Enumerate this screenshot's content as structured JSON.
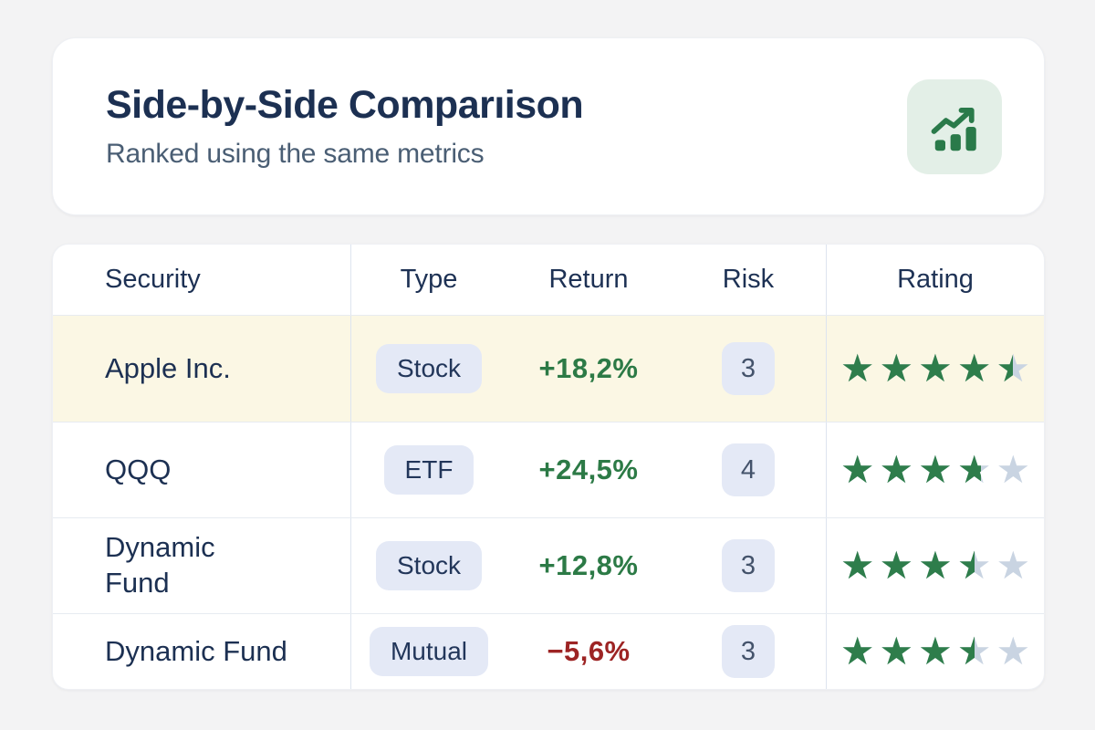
{
  "header": {
    "title": "Side-by-Side Comparıison",
    "subtitle": "Ranked using the same metrics",
    "icon": {
      "name": "bar-chart-trending-up-icon",
      "background": "#e3efe7",
      "color": "#2a7a4a"
    }
  },
  "table": {
    "columns": [
      "Security",
      "Type",
      "Return",
      "Risk",
      "Rating"
    ],
    "rows": [
      {
        "security": "Apple Inc.",
        "type": "Stock",
        "return": "+18,2%",
        "direction": "positive",
        "risk": "3",
        "rating": 4.5,
        "highlighted": true
      },
      {
        "security": "QQQ",
        "type": "ETF",
        "return": "+24,5%",
        "direction": "positive",
        "risk": "4",
        "rating": 3.7,
        "highlighted": false
      },
      {
        "security": "Dynamic\nFund",
        "type": "Stock",
        "return": "+12,8%",
        "direction": "positive",
        "risk": "3",
        "rating": 3.5,
        "highlighted": false
      },
      {
        "security": "Dynamic Fund",
        "type": "Mutual",
        "return": "−5,6%",
        "direction": "negative",
        "risk": "3",
        "rating": 3.5,
        "highlighted": false
      }
    ],
    "colors": {
      "positive": "#2c7a46",
      "negative": "#9d2424",
      "star_full": "#2e7d4b",
      "star_empty": "#c9d4e2",
      "highlight_row": "#fbf7e4",
      "accent_navy": "#1c3052"
    },
    "rating_max": 5
  }
}
